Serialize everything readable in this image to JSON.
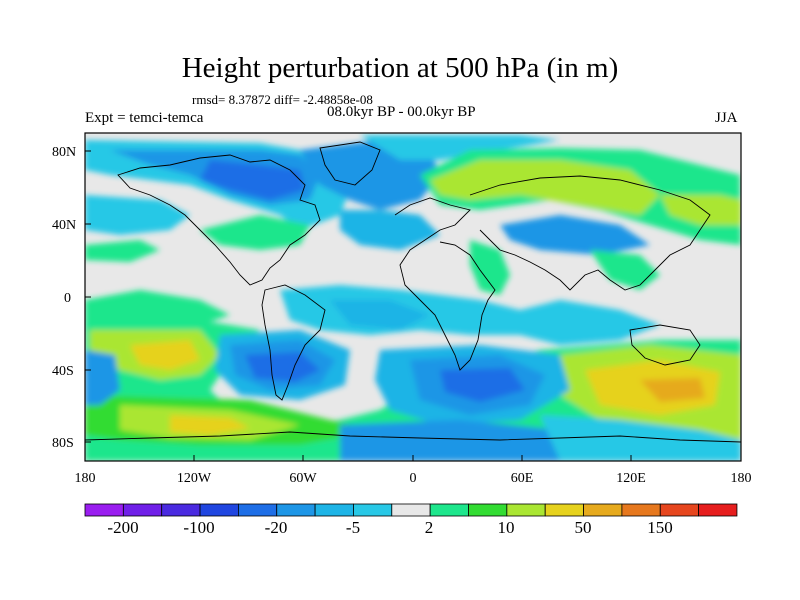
{
  "title": "Height perturbation at 500 hPa (in m)",
  "stats": "rmsd= 8.37872 diff= -2.48858e-08",
  "experiment": "Expt = temci-temca",
  "period": "08.0kyr BP - 00.0kyr BP",
  "season": "JJA",
  "axes": {
    "y_ticks": [
      "80N",
      "40N",
      "0",
      "40S",
      "80S"
    ],
    "x_ticks": [
      "180",
      "120W",
      "60W",
      "0",
      "60E",
      "120E",
      "180"
    ]
  },
  "colors": {
    "land_outline": "#000000",
    "background": "#e8e8e8"
  },
  "colorbar": {
    "labels": [
      "-200",
      "-100",
      "-20",
      "-5",
      "2",
      "10",
      "50",
      "150"
    ],
    "colors": [
      "#9a1ef0",
      "#7020e8",
      "#4a2ae0",
      "#2046e0",
      "#1e6ee6",
      "#1e96e6",
      "#1eb4e6",
      "#28c8e6",
      "#e8e8e8",
      "#1ee68c",
      "#32dc32",
      "#aae632",
      "#e6d21e",
      "#e6aa1e",
      "#e6781e",
      "#e6461e",
      "#e61e1e"
    ]
  }
}
